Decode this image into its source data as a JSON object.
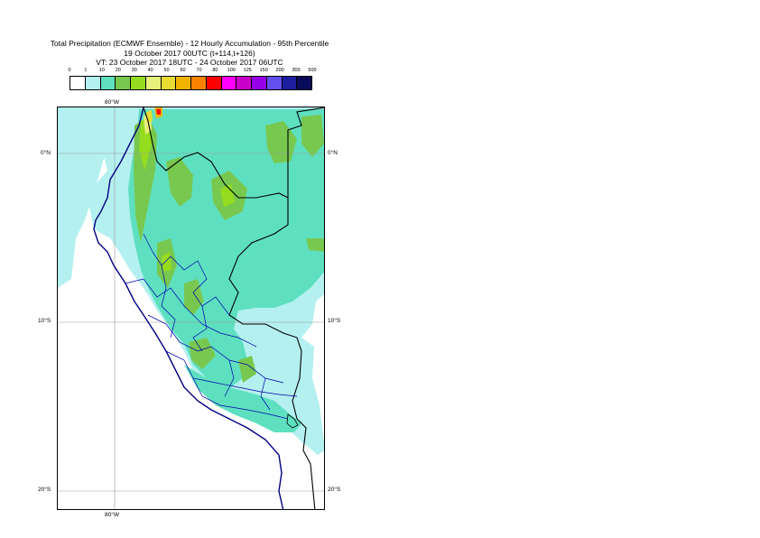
{
  "titles": {
    "line1": "Total Precipitation (ECMWF Ensemble) - 12 Hourly Accumulation - 95th Percentile",
    "line2": "19 October 2017 00UTC (t+114,t+126)",
    "line3": "VT: 23 October 2017 18UTC - 24 October 2017 06UTC"
  },
  "legend": {
    "tick_labels": [
      "0",
      "1",
      "10",
      "20",
      "30",
      "40",
      "50",
      "60",
      "70",
      "80",
      "100",
      "125",
      "150",
      "200",
      "300",
      "500"
    ],
    "colors": [
      "#ffffff",
      "#b4f0f0",
      "#5ee0c0",
      "#78c850",
      "#96dc1e",
      "#e6f07a",
      "#e6dc32",
      "#f0b400",
      "#fa8200",
      "#ff0000",
      "#ff00ff",
      "#c800c8",
      "#9600e6",
      "#6450f0",
      "#1e1ea0",
      "#0a0a5a"
    ]
  },
  "map": {
    "lon_labels": {
      "top": "80°W",
      "bottom": "80°W"
    },
    "lat_labels": [
      "0°N",
      "10°S",
      "20°S"
    ]
  }
}
